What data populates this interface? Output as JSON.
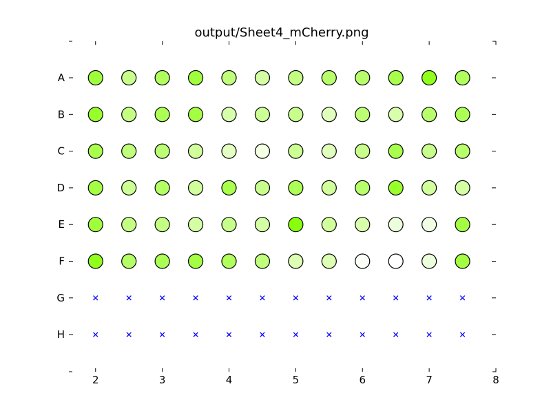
{
  "chart_data": {
    "type": "scatter",
    "title": "output/Sheet4_mCherry.png",
    "xlim": [
      1.6,
      8.0
    ],
    "x_ticks": [
      "2",
      "3",
      "4",
      "5",
      "6",
      "7",
      "8"
    ],
    "x_tick_values": [
      2,
      3,
      4,
      5,
      6,
      7,
      8
    ],
    "rows": [
      "A",
      "B",
      "C",
      "D",
      "E",
      "F",
      "G",
      "H"
    ],
    "columns_x": [
      2,
      2.5,
      3,
      3.5,
      4,
      4.5,
      5,
      5.5,
      6,
      6.5,
      7,
      7.5
    ],
    "grid": false,
    "marker_colors": {
      "A": [
        "#a0ff3c",
        "#c8ff8c",
        "#b0ff5c",
        "#a0ff3c",
        "#c0ff7c",
        "#d4ffa4",
        "#c4ff84",
        "#b8ff6c",
        "#b8ff6c",
        "#a8ff4c",
        "#90ff1c",
        "#b0ff5c"
      ],
      "B": [
        "#98ff2c",
        "#c4ff84",
        "#acff54",
        "#a4ff44",
        "#d8ffac",
        "#ccff94",
        "#c8ff8c",
        "#e0ffbc",
        "#bcff74",
        "#d8ffac",
        "#b8ff6c",
        "#acff54"
      ],
      "C": [
        "#a8ff4c",
        "#c0ff7c",
        "#bcff74",
        "#d0ff9c",
        "#e4ffc4",
        "#f4ffe4",
        "#ccff94",
        "#e0ffbc",
        "#c8ff8c",
        "#a8ff4c",
        "#c8ff8c",
        "#b8ff6c"
      ],
      "D": [
        "#a4ff44",
        "#ccff94",
        "#b4ff64",
        "#d0ff9c",
        "#a8ff4c",
        "#c8ff8c",
        "#acff54",
        "#d0ff9c",
        "#b8ff6c",
        "#98ff2c",
        "#d0ff9c",
        "#d4ffa4"
      ],
      "E": [
        "#a0ff3c",
        "#c4ff84",
        "#c4ff84",
        "#d4ffa4",
        "#c8ff8c",
        "#d4ffa4",
        "#88ff0c",
        "#d0ff9c",
        "#d8ffac",
        "#ecffdc",
        "#f0ffe4",
        "#a4ff44"
      ],
      "F": [
        "#90ff1c",
        "#b4ff64",
        "#acff54",
        "#a4ff44",
        "#b0ff5c",
        "#c0ff7c",
        "#dcffb4",
        "#dcffb4",
        "#fcfff8",
        "#ffffff",
        "#ecffdc",
        "#a4ff44"
      ],
      "G": [],
      "H": []
    },
    "empty_marker": "x",
    "empty_marker_color": "#0000ff"
  }
}
